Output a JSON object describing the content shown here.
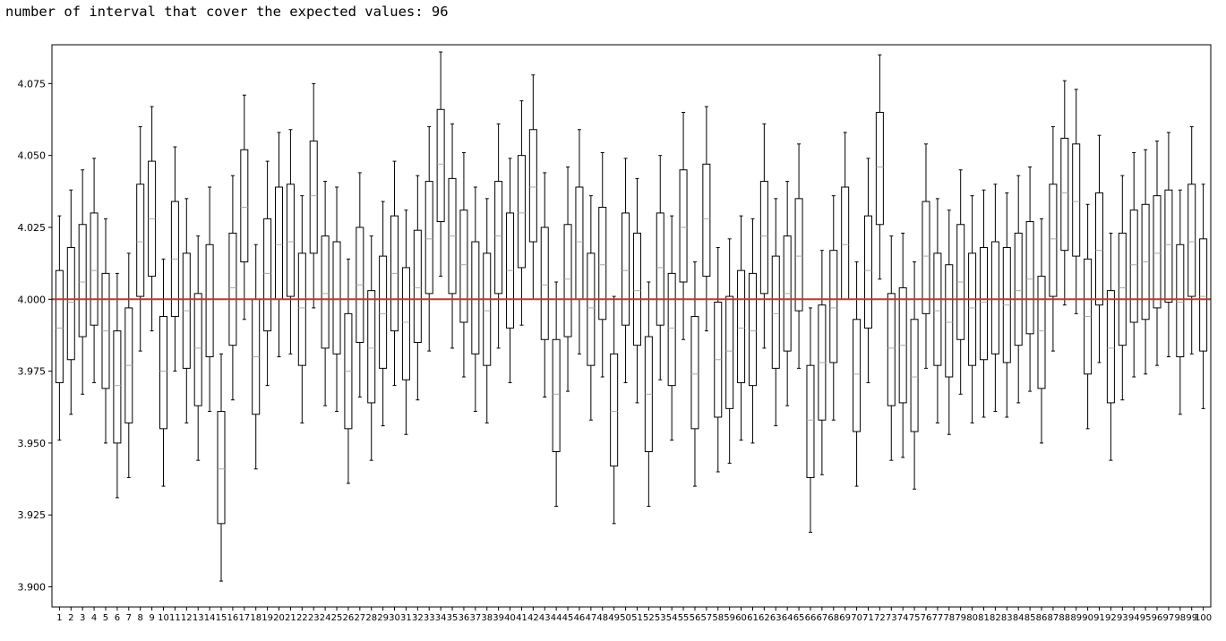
{
  "output": {
    "text": "number of interval that cover the expected values: 96"
  },
  "chart_data": {
    "type": "boxplot",
    "title": "",
    "xlabel": "",
    "ylabel": "",
    "ylim": [
      3.893,
      4.0885
    ],
    "yticks": [
      3.9,
      3.925,
      3.95,
      3.975,
      4.0,
      4.025,
      4.05,
      4.075
    ],
    "ytick_labels": [
      "3.900",
      "3.925",
      "3.950",
      "3.975",
      "4.000",
      "4.025",
      "4.050",
      "4.075"
    ],
    "reference_line": {
      "y": 4.0,
      "color": "#c0392b"
    },
    "grid": false,
    "box_color": "#000000",
    "median_color": "#aaaaaa",
    "categories": [
      "1",
      "2",
      "3",
      "4",
      "5",
      "6",
      "7",
      "8",
      "9",
      "10",
      "11",
      "12",
      "13",
      "14",
      "15",
      "16",
      "17",
      "18",
      "19",
      "20",
      "21",
      "22",
      "23",
      "24",
      "25",
      "26",
      "27",
      "28",
      "29",
      "30",
      "31",
      "32",
      "33",
      "34",
      "35",
      "36",
      "37",
      "38",
      "39",
      "40",
      "41",
      "42",
      "43",
      "44",
      "45",
      "46",
      "47",
      "48",
      "49",
      "50",
      "51",
      "52",
      "53",
      "54",
      "55",
      "56",
      "57",
      "58",
      "59",
      "60",
      "61",
      "62",
      "63",
      "64",
      "65",
      "66",
      "67",
      "68",
      "69",
      "70",
      "71",
      "72",
      "73",
      "74",
      "75",
      "76",
      "77",
      "78",
      "79",
      "80",
      "81",
      "82",
      "83",
      "84",
      "85",
      "86",
      "87",
      "88",
      "89",
      "90",
      "91",
      "92",
      "93",
      "94",
      "95",
      "96",
      "97",
      "98",
      "99",
      "100"
    ],
    "boxes": [
      {
        "whislo": 3.951,
        "q1": 3.971,
        "med": 3.99,
        "q3": 4.01,
        "whishi": 4.029
      },
      {
        "whislo": 3.96,
        "q1": 3.979,
        "med": 3.999,
        "q3": 4.018,
        "whishi": 4.038
      },
      {
        "whislo": 3.967,
        "q1": 3.987,
        "med": 4.006,
        "q3": 4.026,
        "whishi": 4.045
      },
      {
        "whislo": 3.971,
        "q1": 3.991,
        "med": 4.01,
        "q3": 4.03,
        "whishi": 4.049
      },
      {
        "whislo": 3.95,
        "q1": 3.969,
        "med": 3.989,
        "q3": 4.009,
        "whishi": 4.028
      },
      {
        "whislo": 3.931,
        "q1": 3.95,
        "med": 3.97,
        "q3": 3.989,
        "whishi": 4.009
      },
      {
        "whislo": 3.938,
        "q1": 3.957,
        "med": 3.977,
        "q3": 3.997,
        "whishi": 4.016
      },
      {
        "whislo": 3.982,
        "q1": 4.001,
        "med": 4.02,
        "q3": 4.04,
        "whishi": 4.06
      },
      {
        "whislo": 3.989,
        "q1": 4.008,
        "med": 4.028,
        "q3": 4.048,
        "whishi": 4.067
      },
      {
        "whislo": 3.935,
        "q1": 3.955,
        "med": 3.975,
        "q3": 3.994,
        "whishi": 4.014
      },
      {
        "whislo": 3.975,
        "q1": 3.994,
        "med": 4.014,
        "q3": 4.034,
        "whishi": 4.053
      },
      {
        "whislo": 3.957,
        "q1": 3.976,
        "med": 3.996,
        "q3": 4.016,
        "whishi": 4.035
      },
      {
        "whislo": 3.944,
        "q1": 3.963,
        "med": 3.983,
        "q3": 4.002,
        "whishi": 4.022
      },
      {
        "whislo": 3.961,
        "q1": 3.98,
        "med": 4.0,
        "q3": 4.019,
        "whishi": 4.039
      },
      {
        "whislo": 3.902,
        "q1": 3.922,
        "med": 3.941,
        "q3": 3.961,
        "whishi": 3.981
      },
      {
        "whislo": 3.965,
        "q1": 3.984,
        "med": 4.004,
        "q3": 4.023,
        "whishi": 4.043
      },
      {
        "whislo": 3.993,
        "q1": 4.013,
        "med": 4.032,
        "q3": 4.052,
        "whishi": 4.071
      },
      {
        "whislo": 3.941,
        "q1": 3.96,
        "med": 3.98,
        "q3": 4.0,
        "whishi": 4.019
      },
      {
        "whislo": 3.97,
        "q1": 3.989,
        "med": 4.009,
        "q3": 4.028,
        "whishi": 4.048
      },
      {
        "whislo": 3.98,
        "q1": 4.0,
        "med": 4.019,
        "q3": 4.039,
        "whishi": 4.058
      },
      {
        "whislo": 3.981,
        "q1": 4.001,
        "med": 4.02,
        "q3": 4.04,
        "whishi": 4.059
      },
      {
        "whislo": 3.957,
        "q1": 3.977,
        "med": 3.997,
        "q3": 4.016,
        "whishi": 4.036
      },
      {
        "whislo": 3.997,
        "q1": 4.016,
        "med": 4.036,
        "q3": 4.055,
        "whishi": 4.075
      },
      {
        "whislo": 3.963,
        "q1": 3.983,
        "med": 4.002,
        "q3": 4.022,
        "whishi": 4.041
      },
      {
        "whislo": 3.961,
        "q1": 3.981,
        "med": 4.0,
        "q3": 4.02,
        "whishi": 4.039
      },
      {
        "whislo": 3.936,
        "q1": 3.955,
        "med": 3.975,
        "q3": 3.995,
        "whishi": 4.014
      },
      {
        "whislo": 3.966,
        "q1": 3.985,
        "med": 4.005,
        "q3": 4.025,
        "whishi": 4.044
      },
      {
        "whislo": 3.944,
        "q1": 3.964,
        "med": 3.983,
        "q3": 4.003,
        "whishi": 4.022
      },
      {
        "whislo": 3.956,
        "q1": 3.976,
        "med": 3.995,
        "q3": 4.015,
        "whishi": 4.034
      },
      {
        "whislo": 3.97,
        "q1": 3.989,
        "med": 4.009,
        "q3": 4.029,
        "whishi": 4.048
      },
      {
        "whislo": 3.953,
        "q1": 3.972,
        "med": 3.992,
        "q3": 4.011,
        "whishi": 4.031
      },
      {
        "whislo": 3.965,
        "q1": 3.985,
        "med": 4.004,
        "q3": 4.024,
        "whishi": 4.043
      },
      {
        "whislo": 3.982,
        "q1": 4.002,
        "med": 4.021,
        "q3": 4.041,
        "whishi": 4.06
      },
      {
        "whislo": 4.008,
        "q1": 4.027,
        "med": 4.047,
        "q3": 4.066,
        "whishi": 4.086
      },
      {
        "whislo": 3.983,
        "q1": 4.002,
        "med": 4.022,
        "q3": 4.042,
        "whishi": 4.061
      },
      {
        "whislo": 3.973,
        "q1": 3.992,
        "med": 4.012,
        "q3": 4.031,
        "whishi": 4.051
      },
      {
        "whislo": 3.961,
        "q1": 3.981,
        "med": 4.0,
        "q3": 4.02,
        "whishi": 4.039
      },
      {
        "whislo": 3.957,
        "q1": 3.977,
        "med": 3.996,
        "q3": 4.016,
        "whishi": 4.035
      },
      {
        "whislo": 3.983,
        "q1": 4.002,
        "med": 4.022,
        "q3": 4.041,
        "whishi": 4.061
      },
      {
        "whislo": 3.971,
        "q1": 3.99,
        "med": 4.01,
        "q3": 4.03,
        "whishi": 4.049
      },
      {
        "whislo": 3.991,
        "q1": 4.011,
        "med": 4.03,
        "q3": 4.05,
        "whishi": 4.069
      },
      {
        "whislo": 4.0,
        "q1": 4.02,
        "med": 4.039,
        "q3": 4.059,
        "whishi": 4.078
      },
      {
        "whislo": 3.966,
        "q1": 3.986,
        "med": 4.005,
        "q3": 4.025,
        "whishi": 4.044
      },
      {
        "whislo": 3.928,
        "q1": 3.947,
        "med": 3.967,
        "q3": 3.986,
        "whishi": 4.006
      },
      {
        "whislo": 3.968,
        "q1": 3.987,
        "med": 4.007,
        "q3": 4.026,
        "whishi": 4.046
      },
      {
        "whislo": 3.981,
        "q1": 4.0,
        "med": 4.02,
        "q3": 4.039,
        "whishi": 4.059
      },
      {
        "whislo": 3.958,
        "q1": 3.977,
        "med": 3.997,
        "q3": 4.016,
        "whishi": 4.036
      },
      {
        "whislo": 3.973,
        "q1": 3.993,
        "med": 4.012,
        "q3": 4.032,
        "whishi": 4.051
      },
      {
        "whislo": 3.922,
        "q1": 3.942,
        "med": 3.961,
        "q3": 3.981,
        "whishi": 4.001
      },
      {
        "whislo": 3.971,
        "q1": 3.991,
        "med": 4.01,
        "q3": 4.03,
        "whishi": 4.049
      },
      {
        "whislo": 3.964,
        "q1": 3.984,
        "med": 4.003,
        "q3": 4.023,
        "whishi": 4.042
      },
      {
        "whislo": 3.928,
        "q1": 3.947,
        "med": 3.967,
        "q3": 3.987,
        "whishi": 4.006
      },
      {
        "whislo": 3.972,
        "q1": 3.991,
        "med": 4.011,
        "q3": 4.03,
        "whishi": 4.05
      },
      {
        "whislo": 3.951,
        "q1": 3.97,
        "med": 3.99,
        "q3": 4.009,
        "whishi": 4.029
      },
      {
        "whislo": 3.986,
        "q1": 4.006,
        "med": 4.025,
        "q3": 4.045,
        "whishi": 4.065
      },
      {
        "whislo": 3.935,
        "q1": 3.955,
        "med": 3.974,
        "q3": 3.994,
        "whishi": 4.013
      },
      {
        "whislo": 3.989,
        "q1": 4.008,
        "med": 4.028,
        "q3": 4.047,
        "whishi": 4.067
      },
      {
        "whislo": 3.94,
        "q1": 3.959,
        "med": 3.979,
        "q3": 3.999,
        "whishi": 4.018
      },
      {
        "whislo": 3.943,
        "q1": 3.962,
        "med": 3.982,
        "q3": 4.001,
        "whishi": 4.021
      },
      {
        "whislo": 3.951,
        "q1": 3.971,
        "med": 3.99,
        "q3": 4.01,
        "whishi": 4.029
      },
      {
        "whislo": 3.95,
        "q1": 3.97,
        "med": 3.989,
        "q3": 4.009,
        "whishi": 4.028
      },
      {
        "whislo": 3.983,
        "q1": 4.002,
        "med": 4.022,
        "q3": 4.041,
        "whishi": 4.061
      },
      {
        "whislo": 3.956,
        "q1": 3.976,
        "med": 3.995,
        "q3": 4.015,
        "whishi": 4.035
      },
      {
        "whislo": 3.963,
        "q1": 3.982,
        "med": 4.002,
        "q3": 4.022,
        "whishi": 4.041
      },
      {
        "whislo": 3.976,
        "q1": 3.996,
        "med": 4.015,
        "q3": 4.035,
        "whishi": 4.054
      },
      {
        "whislo": 3.919,
        "q1": 3.938,
        "med": 3.958,
        "q3": 3.977,
        "whishi": 3.997
      },
      {
        "whislo": 3.939,
        "q1": 3.958,
        "med": 3.978,
        "q3": 3.998,
        "whishi": 4.017
      },
      {
        "whislo": 3.958,
        "q1": 3.978,
        "med": 3.997,
        "q3": 4.017,
        "whishi": 4.036
      },
      {
        "whislo": 4.0,
        "q1": 4.0,
        "med": 4.019,
        "q3": 4.039,
        "whishi": 4.058
      },
      {
        "whislo": 3.935,
        "q1": 3.954,
        "med": 3.974,
        "q3": 3.993,
        "whishi": 4.013
      },
      {
        "whislo": 3.971,
        "q1": 3.99,
        "med": 4.01,
        "q3": 4.029,
        "whishi": 4.049
      },
      {
        "whislo": 4.007,
        "q1": 4.026,
        "med": 4.046,
        "q3": 4.065,
        "whishi": 4.085
      },
      {
        "whislo": 3.944,
        "q1": 3.963,
        "med": 3.983,
        "q3": 4.002,
        "whishi": 4.022
      },
      {
        "whislo": 3.945,
        "q1": 3.964,
        "med": 3.984,
        "q3": 4.004,
        "whishi": 4.023
      },
      {
        "whislo": 3.934,
        "q1": 3.954,
        "med": 3.973,
        "q3": 3.993,
        "whishi": 4.013
      },
      {
        "whislo": 3.976,
        "q1": 3.995,
        "med": 4.015,
        "q3": 4.034,
        "whishi": 4.054
      },
      {
        "whislo": 3.957,
        "q1": 3.977,
        "med": 3.996,
        "q3": 4.016,
        "whishi": 4.035
      },
      {
        "whislo": 3.953,
        "q1": 3.973,
        "med": 3.992,
        "q3": 4.012,
        "whishi": 4.031
      },
      {
        "whislo": 3.967,
        "q1": 3.986,
        "med": 4.006,
        "q3": 4.026,
        "whishi": 4.045
      },
      {
        "whislo": 3.957,
        "q1": 3.977,
        "med": 3.997,
        "q3": 4.016,
        "whishi": 4.036
      },
      {
        "whislo": 3.959,
        "q1": 3.979,
        "med": 3.999,
        "q3": 4.018,
        "whishi": 4.038
      },
      {
        "whislo": 3.961,
        "q1": 3.981,
        "med": 4.0,
        "q3": 4.02,
        "whishi": 4.04
      },
      {
        "whislo": 3.959,
        "q1": 3.978,
        "med": 3.998,
        "q3": 4.018,
        "whishi": 4.037
      },
      {
        "whislo": 3.964,
        "q1": 3.984,
        "med": 4.003,
        "q3": 4.023,
        "whishi": 4.043
      },
      {
        "whislo": 3.968,
        "q1": 3.988,
        "med": 4.007,
        "q3": 4.027,
        "whishi": 4.046
      },
      {
        "whislo": 3.95,
        "q1": 3.969,
        "med": 3.989,
        "q3": 4.008,
        "whishi": 4.028
      },
      {
        "whislo": 3.982,
        "q1": 4.001,
        "med": 4.021,
        "q3": 4.04,
        "whishi": 4.06
      },
      {
        "whislo": 3.998,
        "q1": 4.017,
        "med": 4.037,
        "q3": 4.056,
        "whishi": 4.076
      },
      {
        "whislo": 3.995,
        "q1": 4.015,
        "med": 4.034,
        "q3": 4.054,
        "whishi": 4.073
      },
      {
        "whislo": 3.955,
        "q1": 3.974,
        "med": 3.994,
        "q3": 4.014,
        "whishi": 4.033
      },
      {
        "whislo": 3.978,
        "q1": 3.998,
        "med": 4.017,
        "q3": 4.037,
        "whishi": 4.057
      },
      {
        "whislo": 3.944,
        "q1": 3.964,
        "med": 3.983,
        "q3": 4.003,
        "whishi": 4.023
      },
      {
        "whislo": 3.965,
        "q1": 3.984,
        "med": 4.004,
        "q3": 4.023,
        "whishi": 4.043
      },
      {
        "whislo": 3.973,
        "q1": 3.992,
        "med": 4.012,
        "q3": 4.031,
        "whishi": 4.051
      },
      {
        "whislo": 3.974,
        "q1": 3.993,
        "med": 4.013,
        "q3": 4.033,
        "whishi": 4.052
      },
      {
        "whislo": 3.977,
        "q1": 3.997,
        "med": 4.016,
        "q3": 4.036,
        "whishi": 4.055
      },
      {
        "whislo": 3.98,
        "q1": 3.999,
        "med": 4.019,
        "q3": 4.038,
        "whishi": 4.058
      },
      {
        "whislo": 3.96,
        "q1": 3.98,
        "med": 3.999,
        "q3": 4.019,
        "whishi": 4.038
      },
      {
        "whislo": 3.981,
        "q1": 4.001,
        "med": 4.02,
        "q3": 4.04,
        "whishi": 4.06
      },
      {
        "whislo": 3.962,
        "q1": 3.982,
        "med": 4.001,
        "q3": 4.021,
        "whishi": 4.04
      }
    ]
  }
}
